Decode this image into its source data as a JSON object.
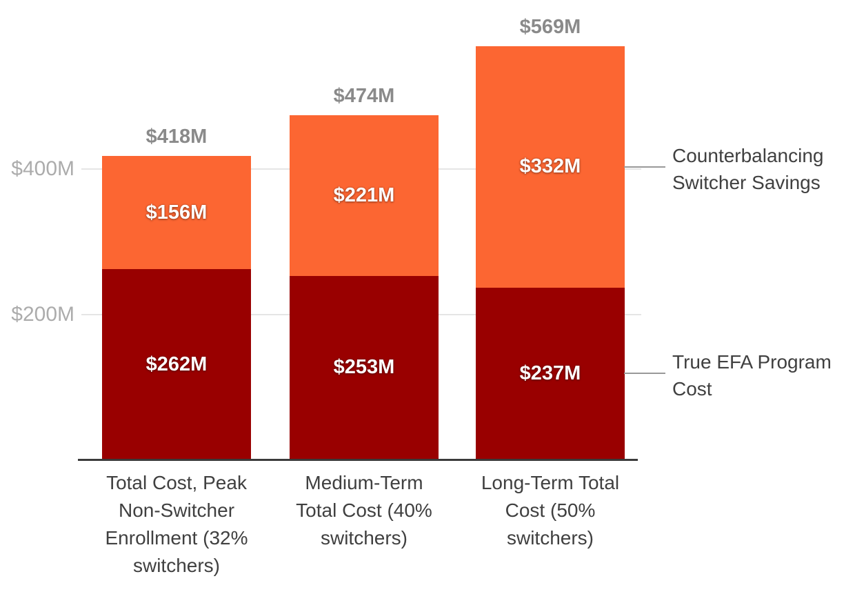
{
  "chart_data": {
    "type": "bar",
    "subtype": "stacked-column",
    "title": "",
    "categories": [
      "Total Cost, Peak Non-Switcher Enrollment (32% switchers)",
      "Medium-Term Total Cost (40% switchers)",
      "Long-Term Total Cost (50% switchers)"
    ],
    "series": [
      {
        "name": "True EFA Program Cost",
        "color": "#990000",
        "values": [
          262,
          253,
          237
        ],
        "data_labels": [
          "$262M",
          "$253M",
          "$237M"
        ],
        "label_color": "#FFFFFF"
      },
      {
        "name": "Counterbalancing Switcher Savings",
        "color": "#FC6632",
        "values": [
          156,
          221,
          332
        ],
        "data_labels": [
          "$156M",
          "$221M",
          "$332M"
        ],
        "label_color": "#FFFFFF"
      }
    ],
    "totals": [
      418,
      474,
      569
    ],
    "total_labels": [
      "$418M",
      "$474M",
      "$569M"
    ],
    "y_axis": {
      "unit": "$M",
      "ticks": [
        200,
        400
      ],
      "tick_labels": [
        "$200M",
        "$400M"
      ],
      "range": [
        0,
        600
      ]
    },
    "grid": true,
    "legend": {
      "position": "right-annotations",
      "entries": [
        {
          "label": "Counterbalancing Switcher Savings",
          "series": "Counterbalancing Switcher Savings"
        },
        {
          "label": "True EFA Program Cost",
          "series": "True EFA Program Cost"
        }
      ]
    }
  },
  "colors": {
    "background": "#FFFFFF",
    "grid_line": "#E5E5E5",
    "axis_line": "#3B3B3B",
    "tick_label": "#ACACAC",
    "total_label": "#8A8A8A",
    "category_label": "#404040",
    "legend_text": "#404040",
    "connector_line": "#999999"
  }
}
